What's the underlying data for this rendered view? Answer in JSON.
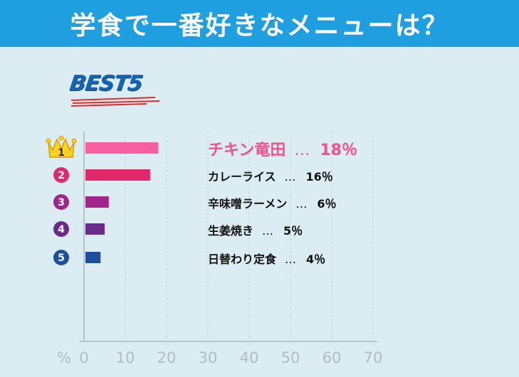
{
  "title": "学食で一番好きなメニューは？",
  "best_badge": "BEST5",
  "axis_unit": "%",
  "colors": {
    "header": "#1f9fe0",
    "background": "#dcecf3",
    "rank_colors": [
      "#f75fa0",
      "#e0286a",
      "#a0268a",
      "#6a2a8c",
      "#1d4f9e"
    ],
    "label_highlight": "#f0508e"
  },
  "chart_data": {
    "type": "bar",
    "orientation": "horizontal",
    "categories": [
      "チキン竜田",
      "カレーライス",
      "辛味噌ラーメン",
      "生姜焼き",
      "日替わり定食"
    ],
    "values": [
      18,
      16,
      6,
      5,
      4
    ],
    "value_labels": [
      "18％",
      "16％",
      "6％",
      "5％",
      "4％"
    ],
    "ranks": [
      "1",
      "2",
      "3",
      "4",
      "5"
    ],
    "xlim": [
      0,
      70
    ],
    "xticks": [
      "0",
      "10",
      "20",
      "30",
      "40",
      "50",
      "60",
      "70"
    ],
    "xlabel": "%",
    "grid": "vertical-dashed",
    "separator": "…"
  }
}
